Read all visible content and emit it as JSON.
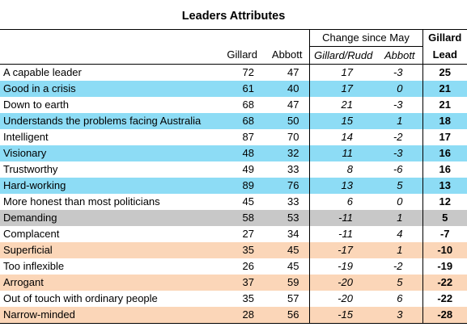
{
  "title": "Leaders Attributes",
  "headers": {
    "change_group": "Change since May",
    "gillard_lead_line1": "Gillard",
    "gillard_lead_line2": "Lead",
    "gillard": "Gillard",
    "abbott": "Abbott",
    "change_gillard_rudd": "Gillard/Rudd",
    "change_abbott": "Abbott"
  },
  "colors": {
    "blue": "#8ddcf5",
    "grey": "#c8c8c8",
    "peach": "#fbd6b8",
    "white": "#ffffff"
  },
  "chart_data": {
    "type": "table",
    "title": "Leaders Attributes",
    "columns": [
      "Gillard",
      "Abbott",
      "Change since May Gillard/Rudd",
      "Change since May Abbott",
      "Gillard Lead"
    ],
    "rows": [
      {
        "label": "A capable leader",
        "gillard": "72",
        "abbott": "47",
        "chg_gillard": "17",
        "chg_abbott": "-3",
        "lead": "25",
        "shade": "white"
      },
      {
        "label": "Good in a crisis",
        "gillard": "61",
        "abbott": "40",
        "chg_gillard": "17",
        "chg_abbott": "0",
        "lead": "21",
        "shade": "blue"
      },
      {
        "label": "Down to earth",
        "gillard": "68",
        "abbott": "47",
        "chg_gillard": "21",
        "chg_abbott": "-3",
        "lead": "21",
        "shade": "white"
      },
      {
        "label": "Understands the problems facing Australia",
        "gillard": "68",
        "abbott": "50",
        "chg_gillard": "15",
        "chg_abbott": "1",
        "lead": "18",
        "shade": "blue"
      },
      {
        "label": "Intelligent",
        "gillard": "87",
        "abbott": "70",
        "chg_gillard": "14",
        "chg_abbott": "-2",
        "lead": "17",
        "shade": "white"
      },
      {
        "label": "Visionary",
        "gillard": "48",
        "abbott": "32",
        "chg_gillard": "11",
        "chg_abbott": "-3",
        "lead": "16",
        "shade": "blue"
      },
      {
        "label": "Trustworthy",
        "gillard": "49",
        "abbott": "33",
        "chg_gillard": "8",
        "chg_abbott": "-6",
        "lead": "16",
        "shade": "white"
      },
      {
        "label": "Hard-working",
        "gillard": "89",
        "abbott": "76",
        "chg_gillard": "13",
        "chg_abbott": "5",
        "lead": "13",
        "shade": "blue"
      },
      {
        "label": "More honest than most politicians",
        "gillard": "45",
        "abbott": "33",
        "chg_gillard": "6",
        "chg_abbott": "0",
        "lead": "12",
        "shade": "white"
      },
      {
        "label": "Demanding",
        "gillard": "58",
        "abbott": "53",
        "chg_gillard": "-11",
        "chg_abbott": "1",
        "lead": "5",
        "shade": "grey"
      },
      {
        "label": "Complacent",
        "gillard": "27",
        "abbott": "34",
        "chg_gillard": "-11",
        "chg_abbott": "4",
        "lead": "-7",
        "shade": "white"
      },
      {
        "label": "Superficial",
        "gillard": "35",
        "abbott": "45",
        "chg_gillard": "-17",
        "chg_abbott": "1",
        "lead": "-10",
        "shade": "peach"
      },
      {
        "label": "Too inflexible",
        "gillard": "26",
        "abbott": "45",
        "chg_gillard": "-19",
        "chg_abbott": "-2",
        "lead": "-19",
        "shade": "white"
      },
      {
        "label": "Arrogant",
        "gillard": "37",
        "abbott": "59",
        "chg_gillard": "-20",
        "chg_abbott": "5",
        "lead": "-22",
        "shade": "peach"
      },
      {
        "label": "Out of touch with ordinary people",
        "gillard": "35",
        "abbott": "57",
        "chg_gillard": "-20",
        "chg_abbott": "6",
        "lead": "-22",
        "shade": "white"
      },
      {
        "label": "Narrow-minded",
        "gillard": "28",
        "abbott": "56",
        "chg_gillard": "-15",
        "chg_abbott": "3",
        "lead": "-28",
        "shade": "peach"
      }
    ]
  }
}
